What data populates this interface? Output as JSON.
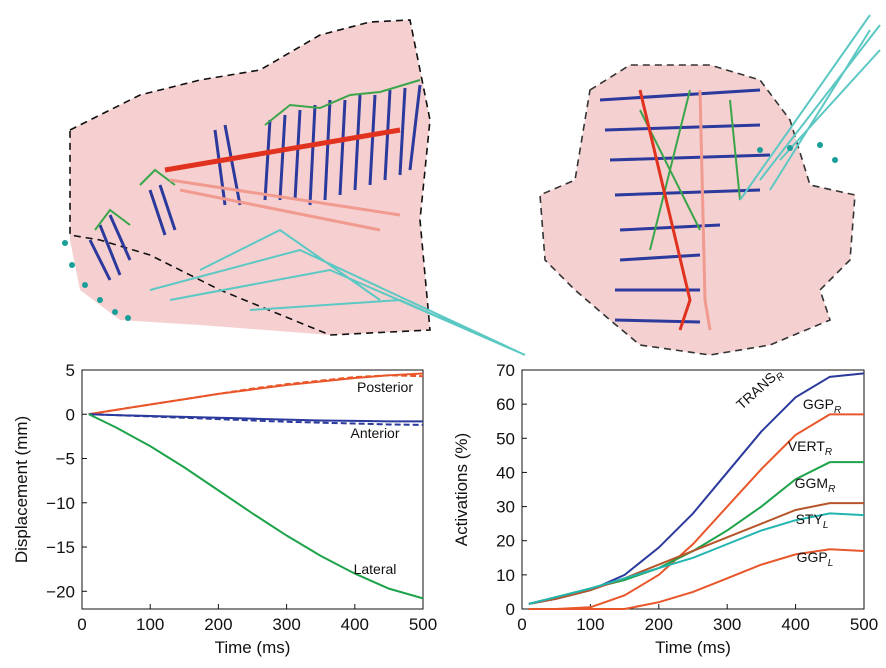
{
  "chart_data": [
    {
      "type": "line",
      "x": [
        10,
        50,
        100,
        150,
        200,
        250,
        300,
        350,
        400,
        450,
        500
      ],
      "xlabel": "Time (ms)",
      "ylabel": "Displacement (mm)",
      "xlim": [
        0,
        500
      ],
      "xticks": [
        0,
        100,
        200,
        300,
        400,
        500
      ],
      "ylim": [
        -22,
        5
      ],
      "yticks": [
        5,
        0,
        {
          "value": -5,
          "label": "−5"
        },
        {
          "value": -10,
          "label": "−10"
        },
        {
          "value": -15,
          "label": "−15"
        },
        {
          "value": -20,
          "label": "−20"
        }
      ],
      "series": [
        {
          "name": "Posterior",
          "color": "#e8562a",
          "values": [
            0,
            0.5,
            1.1,
            1.7,
            2.3,
            2.8,
            3.3,
            3.7,
            4.1,
            4.4,
            4.6
          ]
        },
        {
          "color": "#e8562a",
          "dash": true,
          "values": [
            0,
            0.5,
            1.1,
            1.7,
            2.3,
            2.9,
            3.4,
            3.8,
            4.2,
            4.4,
            4.3
          ]
        },
        {
          "name": "Anterior",
          "color": "#2b3a9c",
          "values": [
            0,
            -0.1,
            -0.2,
            -0.3,
            -0.4,
            -0.5,
            -0.6,
            -0.7,
            -0.75,
            -0.8,
            -0.8
          ]
        },
        {
          "color": "#2b3a9c",
          "dash": true,
          "values": [
            0,
            -0.1,
            -0.25,
            -0.4,
            -0.55,
            -0.7,
            -0.85,
            -0.95,
            -1.05,
            -1.15,
            -1.2
          ]
        },
        {
          "name": "Lateral",
          "color": "#1ea34a",
          "values": [
            0,
            -1.5,
            -3.6,
            -6,
            -8.6,
            -11.2,
            -13.7,
            -16,
            -18,
            -19.7,
            -20.8
          ]
        }
      ]
    },
    {
      "type": "line",
      "x": [
        10,
        50,
        100,
        150,
        200,
        250,
        300,
        350,
        400,
        450,
        500
      ],
      "xlabel": "Time (ms)",
      "ylabel": "Activations (%)",
      "xlim": [
        0,
        500
      ],
      "xticks": [
        0,
        100,
        200,
        300,
        400,
        500
      ],
      "ylim": [
        0,
        70
      ],
      "yticks": [
        0,
        10,
        20,
        30,
        40,
        50,
        60,
        70
      ],
      "series": [
        {
          "name": "TRANS",
          "subscript": "R",
          "color": "#2b3a9c",
          "values": [
            1.5,
            3,
            5.5,
            10,
            18,
            28,
            40,
            52,
            62,
            68,
            69
          ]
        },
        {
          "name": "GGP",
          "subscript": "R",
          "color": "#e8562a",
          "values": [
            0,
            0,
            0.5,
            4,
            10,
            19,
            30,
            41,
            51,
            57,
            57
          ]
        },
        {
          "name": "VERT",
          "subscript": "R",
          "color": "#1ea34a",
          "values": [
            1.5,
            3.5,
            6,
            8.5,
            12,
            17,
            23,
            30,
            38,
            43,
            43
          ]
        },
        {
          "name": "GGM",
          "subscript": "R",
          "color": "#b5552a",
          "values": [
            1.5,
            3,
            5.5,
            9,
            13,
            17,
            21,
            25,
            29,
            31,
            31
          ]
        },
        {
          "name": "STY",
          "subscript": "L",
          "color": "#22b5b0",
          "values": [
            1.5,
            3.5,
            6,
            9,
            12,
            15,
            19,
            23,
            26,
            28,
            27.5
          ]
        },
        {
          "name": "GGP",
          "subscript": "L",
          "color": "#e8562a",
          "values": [
            0,
            0,
            0,
            0,
            2,
            5,
            9,
            13,
            16,
            17.5,
            17
          ]
        }
      ]
    }
  ]
}
